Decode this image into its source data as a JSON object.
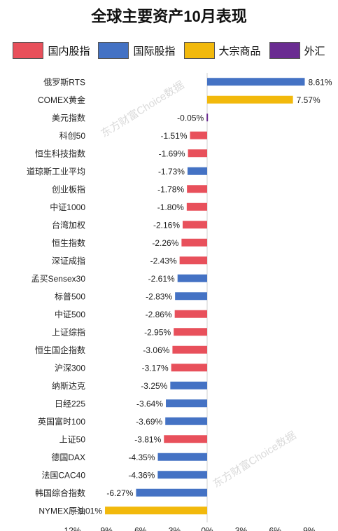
{
  "title": "全球主要资产10月表现",
  "watermark": "东方财富Choice数据",
  "legend": [
    {
      "name": "国内股指",
      "color": "#e8505b"
    },
    {
      "name": "国际股指",
      "color": "#4472c4"
    },
    {
      "name": "大宗商品",
      "color": "#f2b90c"
    },
    {
      "name": "外汇",
      "color": "#6a2c91"
    }
  ],
  "chart_data": {
    "type": "bar",
    "orientation": "horizontal",
    "title": "全球主要资产10月表现",
    "xlim": [
      -12,
      9
    ],
    "xticks": [
      -12,
      -9,
      -6,
      -3,
      0,
      3,
      6,
      9
    ],
    "xtick_labels": [
      "-12%",
      "-9%",
      "-6%",
      "-3%",
      "0%",
      "3%",
      "6%",
      "9%"
    ],
    "unit": "%",
    "grid": false,
    "legend_position": "top",
    "categories": [
      "俄罗斯RTS",
      "COMEX黄金",
      "美元指数",
      "科创50",
      "恒生科技指数",
      "道琼斯工业平均",
      "创业板指",
      "中证1000",
      "台湾加权",
      "恒生指数",
      "深证成指",
      "孟买Sensex30",
      "标普500",
      "中证500",
      "上证综指",
      "恒生国企指数",
      "沪深300",
      "纳斯达克",
      "日经225",
      "英国富时100",
      "上证50",
      "德国DAX",
      "法国CAC40",
      "韩国综合指数",
      "NYMEX原油"
    ],
    "values": [
      8.61,
      7.57,
      -0.05,
      -1.51,
      -1.69,
      -1.73,
      -1.78,
      -1.8,
      -2.16,
      -2.26,
      -2.43,
      -2.61,
      -2.83,
      -2.86,
      -2.95,
      -3.06,
      -3.17,
      -3.25,
      -3.64,
      -3.69,
      -3.81,
      -4.35,
      -4.36,
      -6.27,
      -9.01
    ],
    "value_labels": [
      "8.61%",
      "7.57%",
      "-0.05%",
      "-1.51%",
      "-1.69%",
      "-1.73%",
      "-1.78%",
      "-1.80%",
      "-2.16%",
      "-2.26%",
      "-2.43%",
      "-2.61%",
      "-2.83%",
      "-2.86%",
      "-2.95%",
      "-3.06%",
      "-3.17%",
      "-3.25%",
      "-3.64%",
      "-3.69%",
      "-3.81%",
      "-4.35%",
      "-4.36%",
      "-6.27%",
      "-9.01%"
    ],
    "groups": [
      "国际股指",
      "大宗商品",
      "外汇",
      "国内股指",
      "国内股指",
      "国际股指",
      "国内股指",
      "国内股指",
      "国内股指",
      "国内股指",
      "国内股指",
      "国际股指",
      "国际股指",
      "国内股指",
      "国内股指",
      "国内股指",
      "国内股指",
      "国际股指",
      "国际股指",
      "国际股指",
      "国内股指",
      "国际股指",
      "国际股指",
      "国际股指",
      "大宗商品"
    ]
  }
}
